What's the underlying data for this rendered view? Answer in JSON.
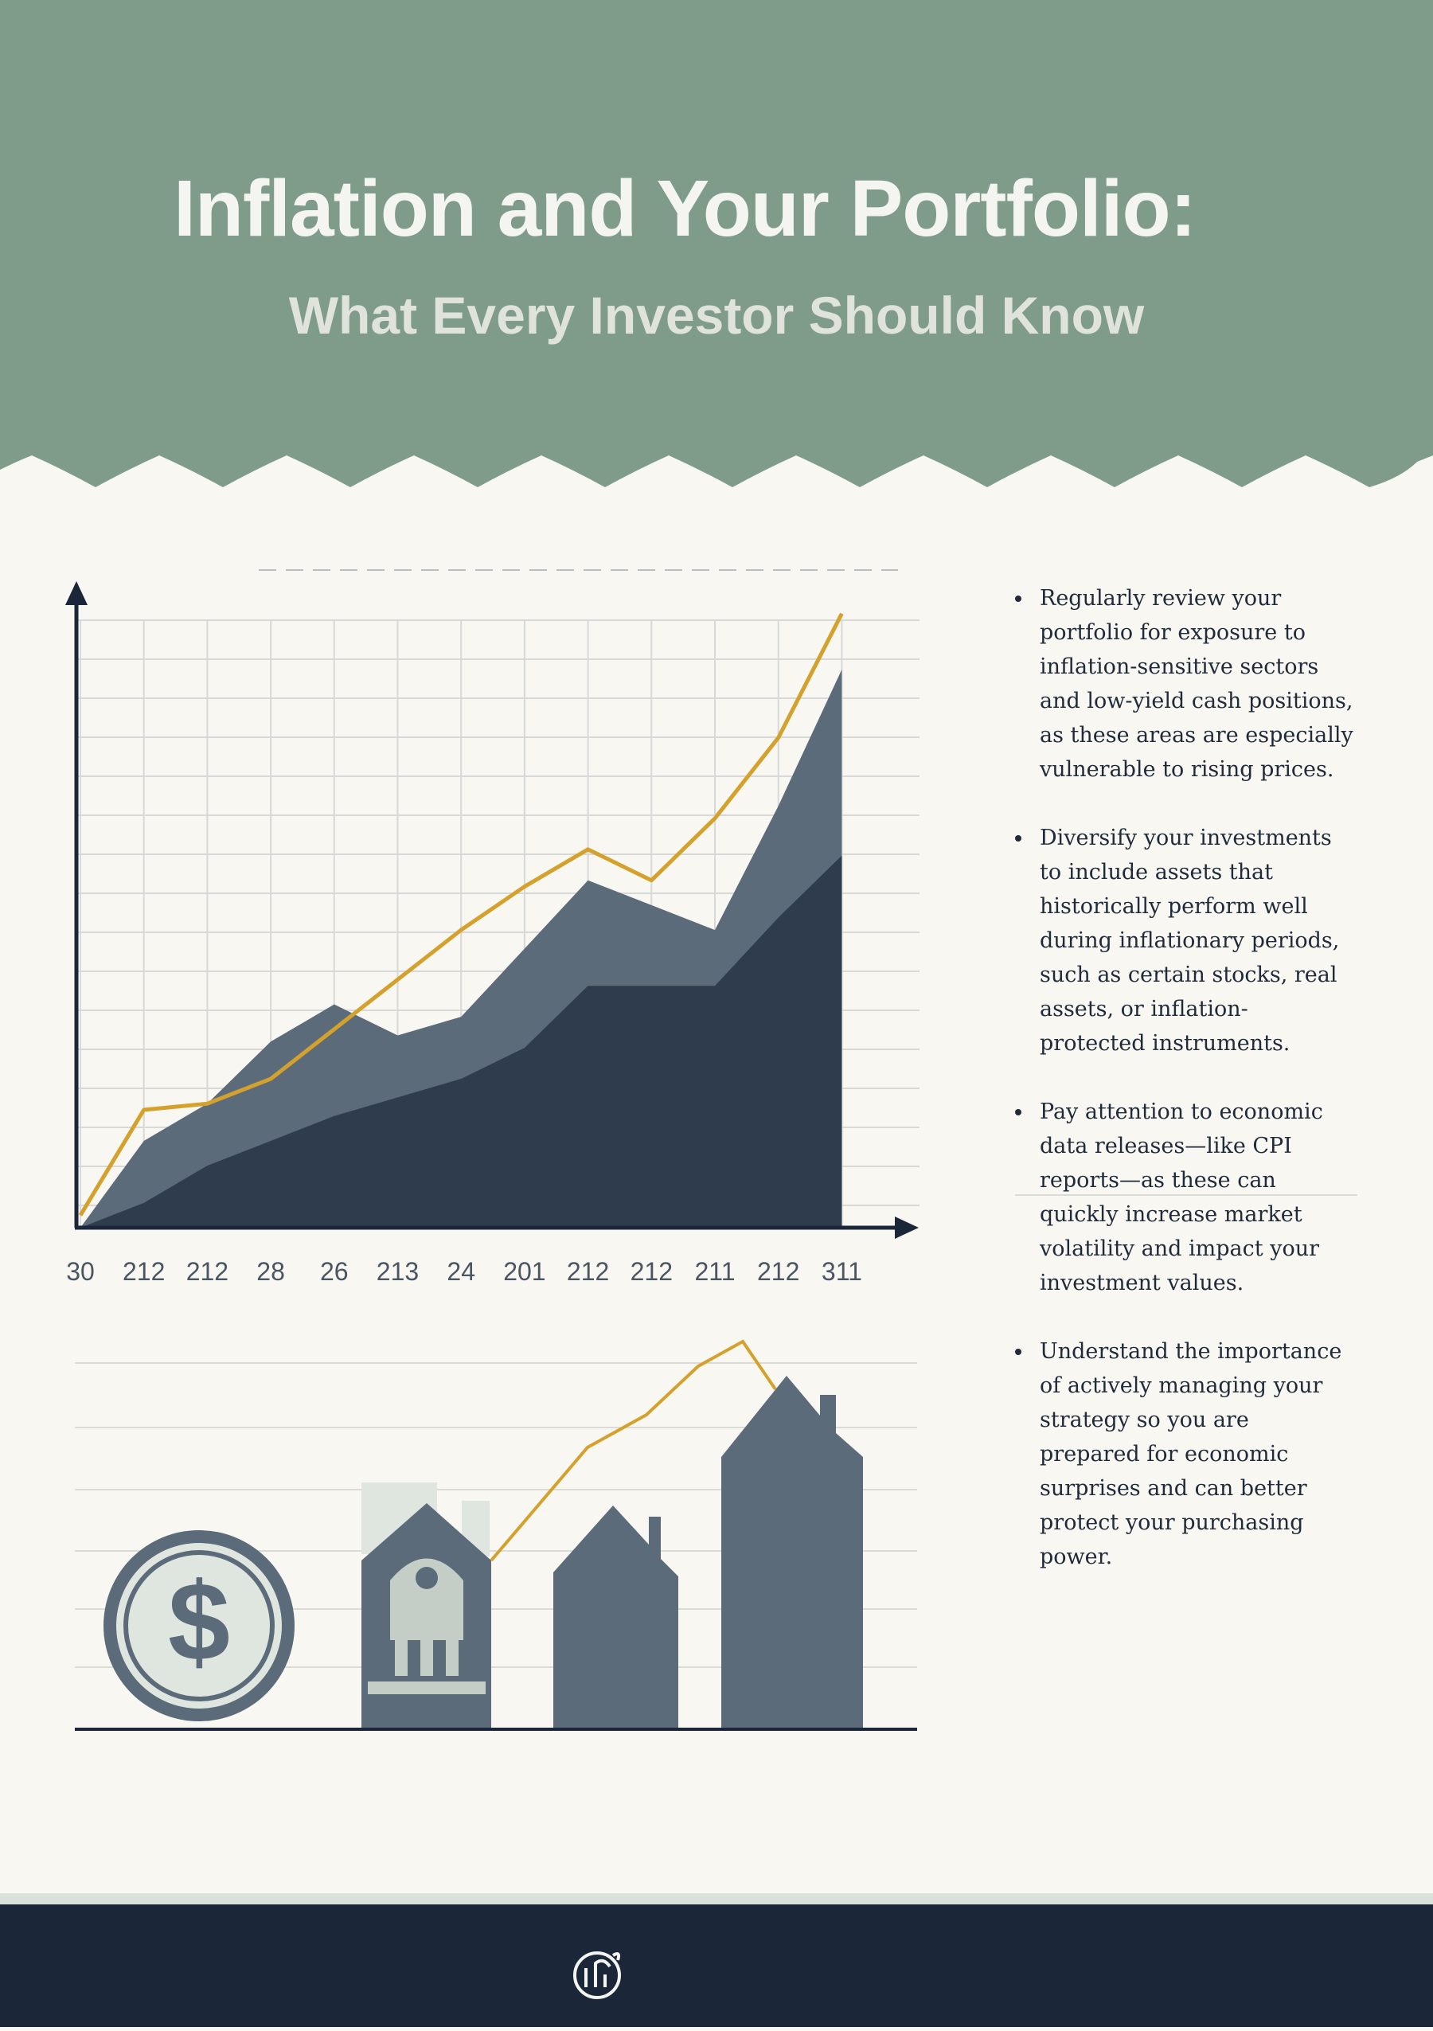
{
  "header": {
    "title": "Inflation and Your Portfolio:",
    "subtitle": "What Every Investor Should Know"
  },
  "chart_data": {
    "type": "area",
    "categories": [
      "30",
      "212",
      "212",
      "28",
      "26",
      "213",
      "24",
      "201",
      "212",
      "212",
      "211",
      "212",
      "311"
    ],
    "series": [
      {
        "type": "area",
        "color": "#5b6b7a",
        "values": [
          0,
          14,
          20,
          30,
          36,
          31,
          34,
          45,
          56,
          52,
          48,
          68,
          90
        ]
      },
      {
        "type": "area",
        "color": "#2f3c4d",
        "values": [
          0,
          4,
          10,
          14,
          18,
          21,
          24,
          29,
          39,
          39,
          39,
          50,
          60
        ]
      },
      {
        "type": "line",
        "color": "#d4a22c",
        "values": [
          2,
          19,
          20,
          24,
          32,
          40,
          48,
          55,
          61,
          56,
          66,
          79,
          99
        ]
      }
    ],
    "ylim": [
      0,
      100
    ],
    "grid": true
  },
  "bullets": [
    "Regularly review your portfolio for exposure to inflation-sensitive sectors and low-yield cash positions, as these areas are especially vulnerable to rising prices.",
    "Diversify your investments to include assets that historically perform well during inflationary periods, such as certain stocks, real assets, or inflation-protected instruments.",
    "Pay attention to economic data releases—like CPI reports—as these can quickly increase market volatility and impact your investment values.",
    "Understand the importance of actively managing your strategy so you are prepared for economic surprises and can better protect your purchasing power."
  ]
}
